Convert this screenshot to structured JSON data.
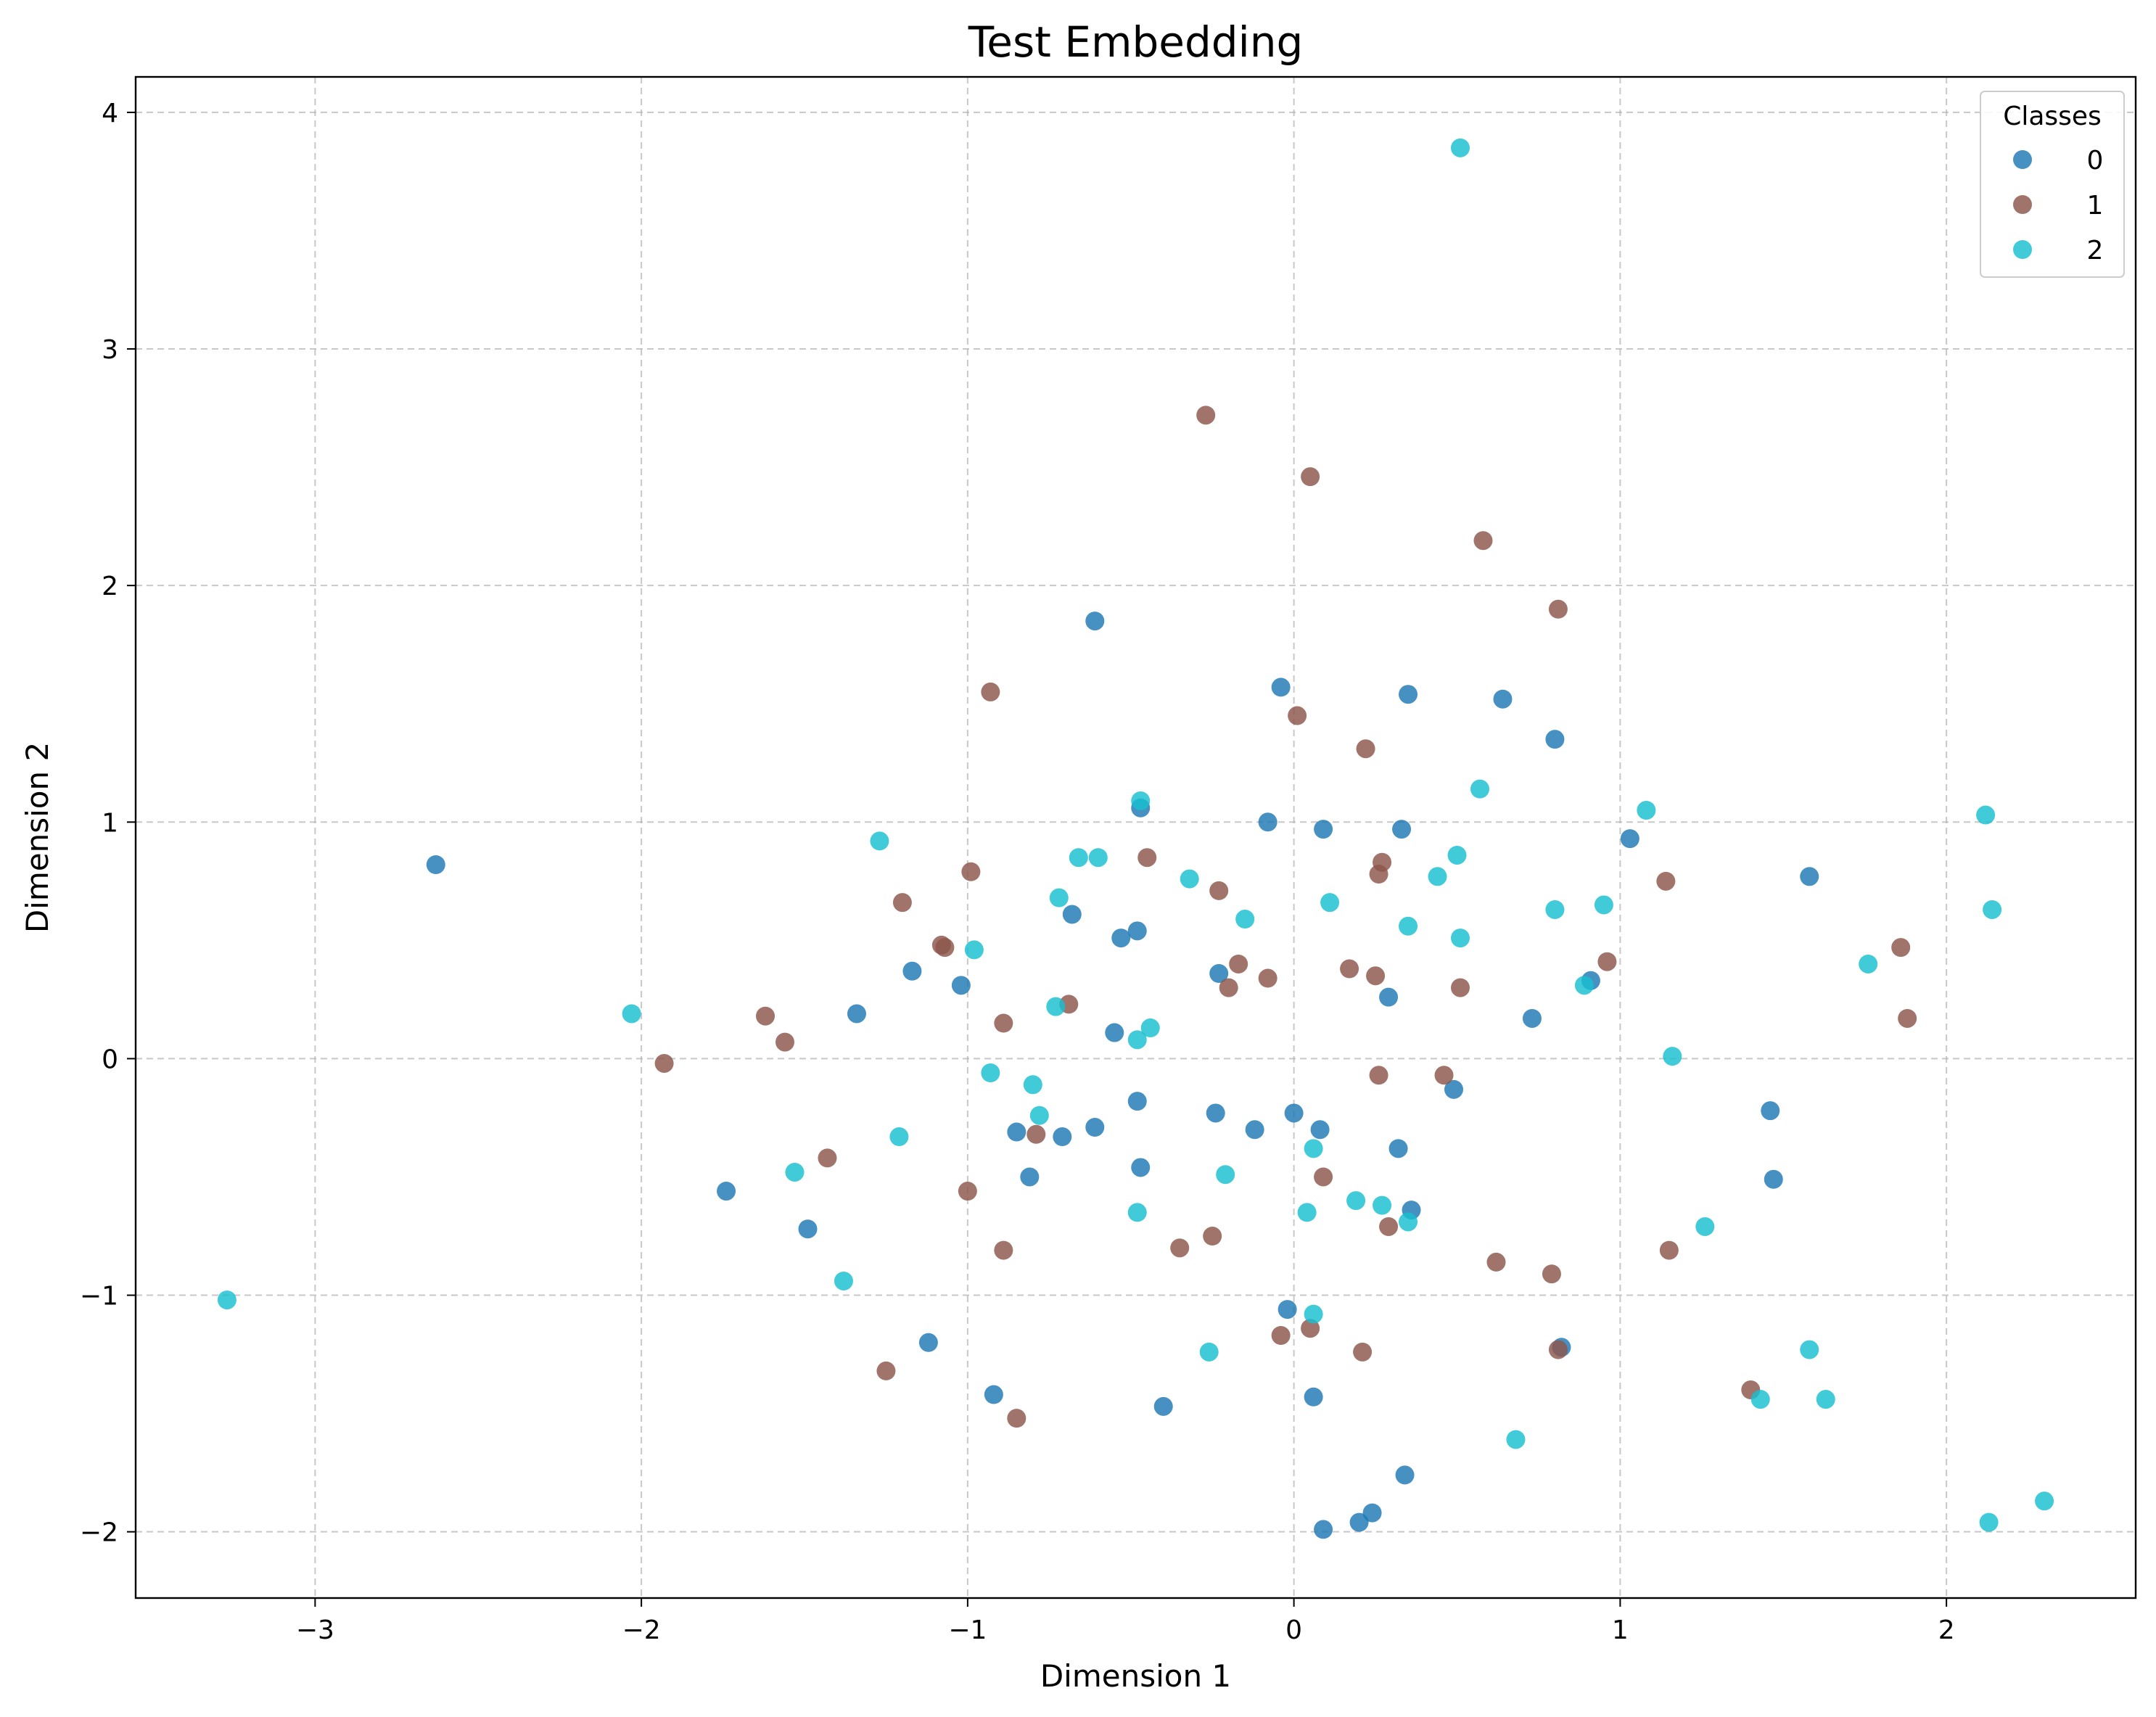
{
  "chart_data": {
    "type": "scatter",
    "title": "Test Embedding",
    "xlabel": "Dimension 1",
    "ylabel": "Dimension 2",
    "xlim": [
      -3.55,
      2.58
    ],
    "ylim": [
      -2.28,
      4.15
    ],
    "xticks": [
      -3,
      -2,
      -1,
      0,
      1,
      2
    ],
    "yticks": [
      -2,
      -1,
      0,
      1,
      2,
      3,
      4
    ],
    "grid": true,
    "legend": {
      "title": "Classes",
      "position": "top-right"
    },
    "series": [
      {
        "name": "0",
        "color": "#1f77b4",
        "points": [
          [
            -2.63,
            0.82
          ],
          [
            -0.61,
            1.85
          ],
          [
            -1.74,
            -0.56
          ],
          [
            -1.49,
            -0.72
          ],
          [
            -1.34,
            0.19
          ],
          [
            -1.17,
            0.37
          ],
          [
            -1.02,
            0.31
          ],
          [
            -1.12,
            -1.2
          ],
          [
            -0.92,
            -1.42
          ],
          [
            -0.85,
            -0.31
          ],
          [
            -0.81,
            -0.5
          ],
          [
            -0.71,
            -0.33
          ],
          [
            -0.68,
            0.61
          ],
          [
            -0.61,
            -0.29
          ],
          [
            -0.55,
            0.11
          ],
          [
            -0.53,
            0.51
          ],
          [
            -0.48,
            0.54
          ],
          [
            -0.47,
            1.06
          ],
          [
            -0.48,
            -0.18
          ],
          [
            -0.47,
            -0.46
          ],
          [
            -0.4,
            -1.47
          ],
          [
            -0.24,
            -0.23
          ],
          [
            -0.23,
            0.36
          ],
          [
            -0.12,
            -0.3
          ],
          [
            -0.08,
            1.0
          ],
          [
            -0.04,
            1.57
          ],
          [
            -0.02,
            -1.06
          ],
          [
            0.0,
            -0.23
          ],
          [
            0.06,
            -1.43
          ],
          [
            0.08,
            -0.3
          ],
          [
            0.09,
            0.97
          ],
          [
            0.09,
            -1.99
          ],
          [
            0.2,
            -1.96
          ],
          [
            0.24,
            -1.92
          ],
          [
            0.29,
            0.26
          ],
          [
            0.32,
            -0.38
          ],
          [
            0.33,
            0.97
          ],
          [
            0.34,
            -1.76
          ],
          [
            0.35,
            1.54
          ],
          [
            0.36,
            -0.64
          ],
          [
            0.49,
            -0.13
          ],
          [
            0.64,
            1.52
          ],
          [
            0.73,
            0.17
          ],
          [
            0.8,
            1.35
          ],
          [
            0.82,
            -1.22
          ],
          [
            0.91,
            0.33
          ],
          [
            1.03,
            0.93
          ],
          [
            1.46,
            -0.22
          ],
          [
            1.47,
            -0.51
          ],
          [
            1.58,
            0.77
          ]
        ]
      },
      {
        "name": "1",
        "color": "#8c564b",
        "points": [
          [
            -1.93,
            -0.02
          ],
          [
            -1.62,
            0.18
          ],
          [
            -1.56,
            0.07
          ],
          [
            -1.43,
            -0.42
          ],
          [
            -1.25,
            -1.32
          ],
          [
            -1.2,
            0.66
          ],
          [
            -1.08,
            0.48
          ],
          [
            -1.07,
            0.47
          ],
          [
            -1.0,
            -0.56
          ],
          [
            -0.99,
            0.79
          ],
          [
            -0.93,
            1.55
          ],
          [
            -0.89,
            0.15
          ],
          [
            -0.89,
            -0.81
          ],
          [
            -0.85,
            -1.52
          ],
          [
            -0.79,
            -0.32
          ],
          [
            -0.69,
            0.23
          ],
          [
            -0.45,
            0.85
          ],
          [
            -0.35,
            -0.8
          ],
          [
            -0.27,
            2.72
          ],
          [
            -0.25,
            -0.75
          ],
          [
            -0.23,
            0.71
          ],
          [
            -0.2,
            0.3
          ],
          [
            -0.17,
            0.4
          ],
          [
            -0.08,
            0.34
          ],
          [
            -0.04,
            -1.17
          ],
          [
            0.01,
            1.45
          ],
          [
            0.05,
            2.46
          ],
          [
            0.05,
            -1.14
          ],
          [
            0.09,
            -0.5
          ],
          [
            0.21,
            -1.24
          ],
          [
            0.22,
            1.31
          ],
          [
            0.17,
            0.38
          ],
          [
            0.25,
            0.35
          ],
          [
            0.26,
            0.78
          ],
          [
            0.26,
            -0.07
          ],
          [
            0.27,
            0.83
          ],
          [
            0.29,
            -0.71
          ],
          [
            0.46,
            -0.07
          ],
          [
            0.51,
            0.3
          ],
          [
            0.58,
            2.19
          ],
          [
            0.62,
            -0.86
          ],
          [
            0.79,
            -0.91
          ],
          [
            0.81,
            -1.23
          ],
          [
            0.81,
            1.9
          ],
          [
            0.96,
            0.41
          ],
          [
            1.14,
            0.75
          ],
          [
            1.15,
            -0.81
          ],
          [
            1.4,
            -1.4
          ],
          [
            1.86,
            0.47
          ],
          [
            1.88,
            0.17
          ]
        ]
      },
      {
        "name": "2",
        "color": "#17becf",
        "points": [
          [
            -3.27,
            -1.02
          ],
          [
            -2.03,
            0.19
          ],
          [
            -1.53,
            -0.48
          ],
          [
            -1.38,
            -0.94
          ],
          [
            -1.27,
            0.92
          ],
          [
            -1.21,
            -0.33
          ],
          [
            -0.98,
            0.46
          ],
          [
            -0.93,
            -0.06
          ],
          [
            -0.8,
            -0.11
          ],
          [
            -0.78,
            -0.24
          ],
          [
            -0.73,
            0.22
          ],
          [
            -0.72,
            0.68
          ],
          [
            -0.66,
            0.85
          ],
          [
            -0.6,
            0.85
          ],
          [
            -0.48,
            0.08
          ],
          [
            -0.47,
            1.09
          ],
          [
            -0.48,
            -0.65
          ],
          [
            -0.44,
            0.13
          ],
          [
            -0.32,
            0.76
          ],
          [
            -0.26,
            -1.24
          ],
          [
            -0.21,
            -0.49
          ],
          [
            -0.15,
            0.59
          ],
          [
            0.04,
            -0.65
          ],
          [
            0.06,
            -0.38
          ],
          [
            0.06,
            -1.08
          ],
          [
            0.11,
            0.66
          ],
          [
            0.19,
            -0.6
          ],
          [
            0.27,
            -0.62
          ],
          [
            0.35,
            0.56
          ],
          [
            0.35,
            -0.69
          ],
          [
            0.44,
            0.77
          ],
          [
            0.5,
            0.86
          ],
          [
            0.51,
            0.51
          ],
          [
            0.51,
            3.85
          ],
          [
            0.57,
            1.14
          ],
          [
            0.68,
            -1.61
          ],
          [
            0.8,
            0.63
          ],
          [
            0.89,
            0.31
          ],
          [
            0.95,
            0.65
          ],
          [
            1.08,
            1.05
          ],
          [
            1.16,
            0.01
          ],
          [
            1.26,
            -0.71
          ],
          [
            1.43,
            -1.44
          ],
          [
            1.58,
            -1.23
          ],
          [
            1.63,
            -1.44
          ],
          [
            1.76,
            0.4
          ],
          [
            2.12,
            1.03
          ],
          [
            2.14,
            0.63
          ],
          [
            2.13,
            -1.96
          ],
          [
            2.3,
            -1.87
          ]
        ]
      }
    ]
  }
}
